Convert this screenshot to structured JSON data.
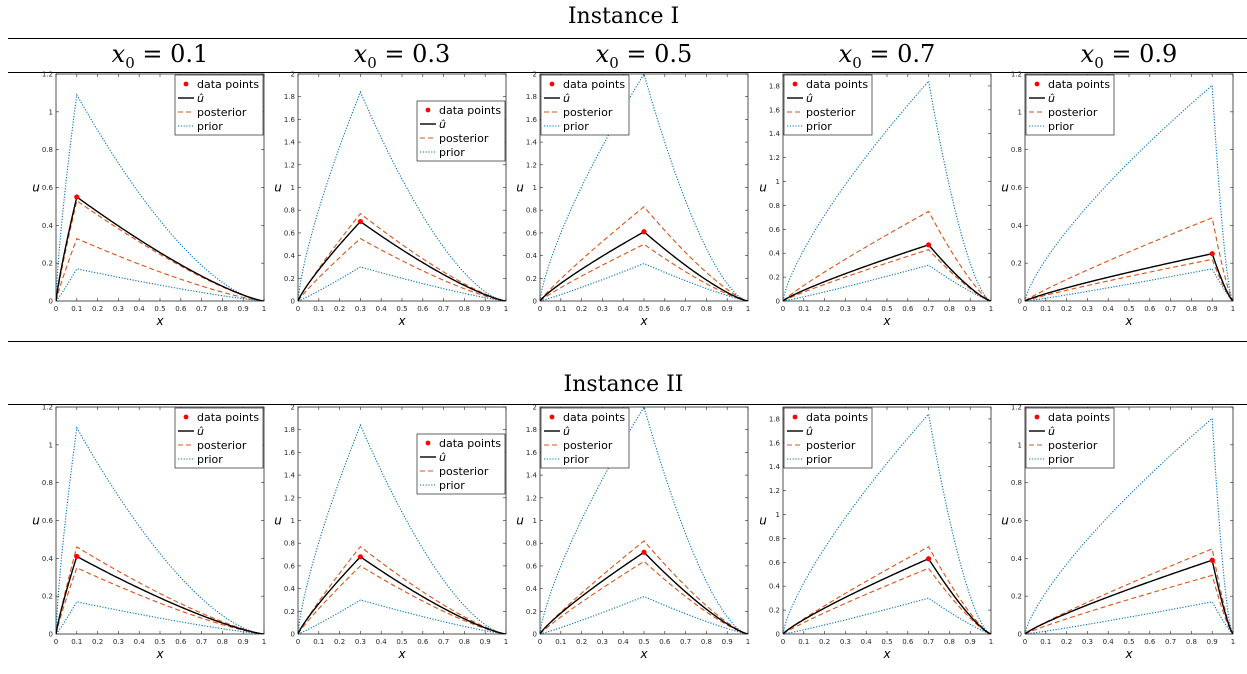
{
  "instance1": {
    "title": "Instance I"
  },
  "instance2": {
    "title": "Instance II"
  },
  "column_headers": [
    {
      "var": "x",
      "sub": "0",
      "rest": " = 0.1"
    },
    {
      "var": "x",
      "sub": "0",
      "rest": " = 0.3"
    },
    {
      "var": "x",
      "sub": "0",
      "rest": " = 0.5"
    },
    {
      "var": "x",
      "sub": "0",
      "rest": " = 0.7"
    },
    {
      "var": "x",
      "sub": "0",
      "rest": " = 0.9"
    }
  ],
  "legend": [
    "data points",
    "û",
    "posterior",
    "prior"
  ],
  "colors": {
    "data": "#ff0000",
    "uhat": "#000000",
    "posterior": "#d95319",
    "prior": "#0072bd"
  },
  "chart_data": [
    {
      "type": "line",
      "instance": "Instance I",
      "x0": 0.1,
      "xlabel": "x",
      "ylabel": "u",
      "xlim": [
        0,
        1
      ],
      "ylim": [
        0,
        1.2
      ],
      "xticks": [
        0,
        0.1,
        0.2,
        0.3,
        0.4,
        0.5,
        0.6,
        0.7,
        0.8,
        0.9,
        1
      ],
      "yticks": [
        0,
        0.2,
        0.4,
        0.6,
        0.8,
        1,
        1.2
      ],
      "peak": {
        "uhat": 0.55,
        "post_upper": 0.53,
        "post_lower": 0.33,
        "prior_upper": 1.09,
        "prior_lower": 0.17
      },
      "data_points": [
        {
          "x": 0.1,
          "y": 0.55
        }
      ]
    },
    {
      "type": "line",
      "instance": "Instance I",
      "x0": 0.3,
      "xlabel": "x",
      "ylabel": "u",
      "xlim": [
        0,
        1
      ],
      "ylim": [
        0,
        2
      ],
      "xticks": [
        0,
        0.1,
        0.2,
        0.3,
        0.4,
        0.5,
        0.6,
        0.7,
        0.8,
        0.9,
        1
      ],
      "yticks": [
        0,
        0.2,
        0.4,
        0.6,
        0.8,
        1,
        1.2,
        1.4,
        1.6,
        1.8,
        2
      ],
      "peak": {
        "uhat": 0.7,
        "post_upper": 0.77,
        "post_lower": 0.55,
        "prior_upper": 1.84,
        "prior_lower": 0.3
      },
      "data_points": [
        {
          "x": 0.3,
          "y": 0.7
        }
      ]
    },
    {
      "type": "line",
      "instance": "Instance I",
      "x0": 0.5,
      "xlabel": "x",
      "ylabel": "u",
      "xlim": [
        0,
        1
      ],
      "ylim": [
        0,
        2
      ],
      "xticks": [
        0,
        0.1,
        0.2,
        0.3,
        0.4,
        0.5,
        0.6,
        0.7,
        0.8,
        0.9,
        1
      ],
      "yticks": [
        0,
        0.2,
        0.4,
        0.6,
        0.8,
        1,
        1.2,
        1.4,
        1.6,
        1.8,
        2
      ],
      "peak": {
        "uhat": 0.61,
        "post_upper": 0.83,
        "post_lower": 0.5,
        "prior_upper": 2.0,
        "prior_lower": 0.33
      },
      "data_points": [
        {
          "x": 0.5,
          "y": 0.61
        }
      ]
    },
    {
      "type": "line",
      "instance": "Instance I",
      "x0": 0.7,
      "xlabel": "x",
      "ylabel": "u",
      "xlim": [
        0,
        1
      ],
      "ylim": [
        0,
        1.9
      ],
      "xticks": [
        0,
        0.1,
        0.2,
        0.3,
        0.4,
        0.5,
        0.6,
        0.7,
        0.8,
        0.9,
        1
      ],
      "yticks": [
        0,
        0.2,
        0.4,
        0.6,
        0.8,
        1,
        1.2,
        1.4,
        1.6,
        1.8
      ],
      "peak": {
        "uhat": 0.47,
        "post_upper": 0.75,
        "post_lower": 0.43,
        "prior_upper": 1.84,
        "prior_lower": 0.3
      },
      "data_points": [
        {
          "x": 0.7,
          "y": 0.47
        }
      ]
    },
    {
      "type": "line",
      "instance": "Instance I",
      "x0": 0.9,
      "xlabel": "x",
      "ylabel": "u",
      "xlim": [
        0,
        1
      ],
      "ylim": [
        0,
        1.2
      ],
      "xticks": [
        0,
        0.1,
        0.2,
        0.3,
        0.4,
        0.5,
        0.6,
        0.7,
        0.8,
        0.9,
        1
      ],
      "yticks": [
        0,
        0.2,
        0.4,
        0.6,
        0.8,
        1,
        1.2
      ],
      "peak": {
        "uhat": 0.25,
        "post_upper": 0.44,
        "post_lower": 0.22,
        "prior_upper": 1.14,
        "prior_lower": 0.17
      },
      "data_points": [
        {
          "x": 0.9,
          "y": 0.25
        }
      ]
    },
    {
      "type": "line",
      "instance": "Instance II",
      "x0": 0.1,
      "xlabel": "x",
      "ylabel": "u",
      "xlim": [
        0,
        1
      ],
      "ylim": [
        0,
        1.2
      ],
      "xticks": [
        0,
        0.1,
        0.2,
        0.3,
        0.4,
        0.5,
        0.6,
        0.7,
        0.8,
        0.9,
        1
      ],
      "yticks": [
        0,
        0.2,
        0.4,
        0.6,
        0.8,
        1,
        1.2
      ],
      "peak": {
        "uhat": 0.41,
        "post_upper": 0.46,
        "post_lower": 0.35,
        "prior_upper": 1.09,
        "prior_lower": 0.17
      },
      "data_points": [
        {
          "x": 0.1,
          "y": 0.41
        }
      ]
    },
    {
      "type": "line",
      "instance": "Instance II",
      "x0": 0.3,
      "xlabel": "x",
      "ylabel": "u",
      "xlim": [
        0,
        1
      ],
      "ylim": [
        0,
        2
      ],
      "xticks": [
        0,
        0.1,
        0.2,
        0.3,
        0.4,
        0.5,
        0.6,
        0.7,
        0.8,
        0.9,
        1
      ],
      "yticks": [
        0,
        0.2,
        0.4,
        0.6,
        0.8,
        1,
        1.2,
        1.4,
        1.6,
        1.8,
        2
      ],
      "peak": {
        "uhat": 0.68,
        "post_upper": 0.77,
        "post_lower": 0.6,
        "prior_upper": 1.84,
        "prior_lower": 0.3
      },
      "data_points": [
        {
          "x": 0.3,
          "y": 0.68
        }
      ]
    },
    {
      "type": "line",
      "instance": "Instance II",
      "x0": 0.5,
      "xlabel": "x",
      "ylabel": "u",
      "xlim": [
        0,
        1
      ],
      "ylim": [
        0,
        2
      ],
      "xticks": [
        0,
        0.1,
        0.2,
        0.3,
        0.4,
        0.5,
        0.6,
        0.7,
        0.8,
        0.9,
        1
      ],
      "yticks": [
        0,
        0.2,
        0.4,
        0.6,
        0.8,
        1,
        1.2,
        1.4,
        1.6,
        1.8,
        2
      ],
      "peak": {
        "uhat": 0.72,
        "post_upper": 0.82,
        "post_lower": 0.64,
        "prior_upper": 2.0,
        "prior_lower": 0.33
      },
      "data_points": [
        {
          "x": 0.5,
          "y": 0.72
        }
      ]
    },
    {
      "type": "line",
      "instance": "Instance II",
      "x0": 0.7,
      "xlabel": "x",
      "ylabel": "u",
      "xlim": [
        0,
        1
      ],
      "ylim": [
        0,
        1.9
      ],
      "xticks": [
        0,
        0.1,
        0.2,
        0.3,
        0.4,
        0.5,
        0.6,
        0.7,
        0.8,
        0.9,
        1
      ],
      "yticks": [
        0,
        0.2,
        0.4,
        0.6,
        0.8,
        1,
        1.2,
        1.4,
        1.6,
        1.8
      ],
      "peak": {
        "uhat": 0.63,
        "post_upper": 0.73,
        "post_lower": 0.55,
        "prior_upper": 1.84,
        "prior_lower": 0.3
      },
      "data_points": [
        {
          "x": 0.7,
          "y": 0.63
        }
      ]
    },
    {
      "type": "line",
      "instance": "Instance II",
      "x0": 0.9,
      "xlabel": "x",
      "ylabel": "u",
      "xlim": [
        0,
        1
      ],
      "ylim": [
        0,
        1.2
      ],
      "xticks": [
        0,
        0.1,
        0.2,
        0.3,
        0.4,
        0.5,
        0.6,
        0.7,
        0.8,
        0.9,
        1
      ],
      "yticks": [
        0,
        0.2,
        0.4,
        0.6,
        0.8,
        1,
        1.2
      ],
      "peak": {
        "uhat": 0.39,
        "post_upper": 0.45,
        "post_lower": 0.31,
        "prior_upper": 1.14,
        "prior_lower": 0.17
      },
      "data_points": [
        {
          "x": 0.9,
          "y": 0.39
        }
      ]
    }
  ]
}
